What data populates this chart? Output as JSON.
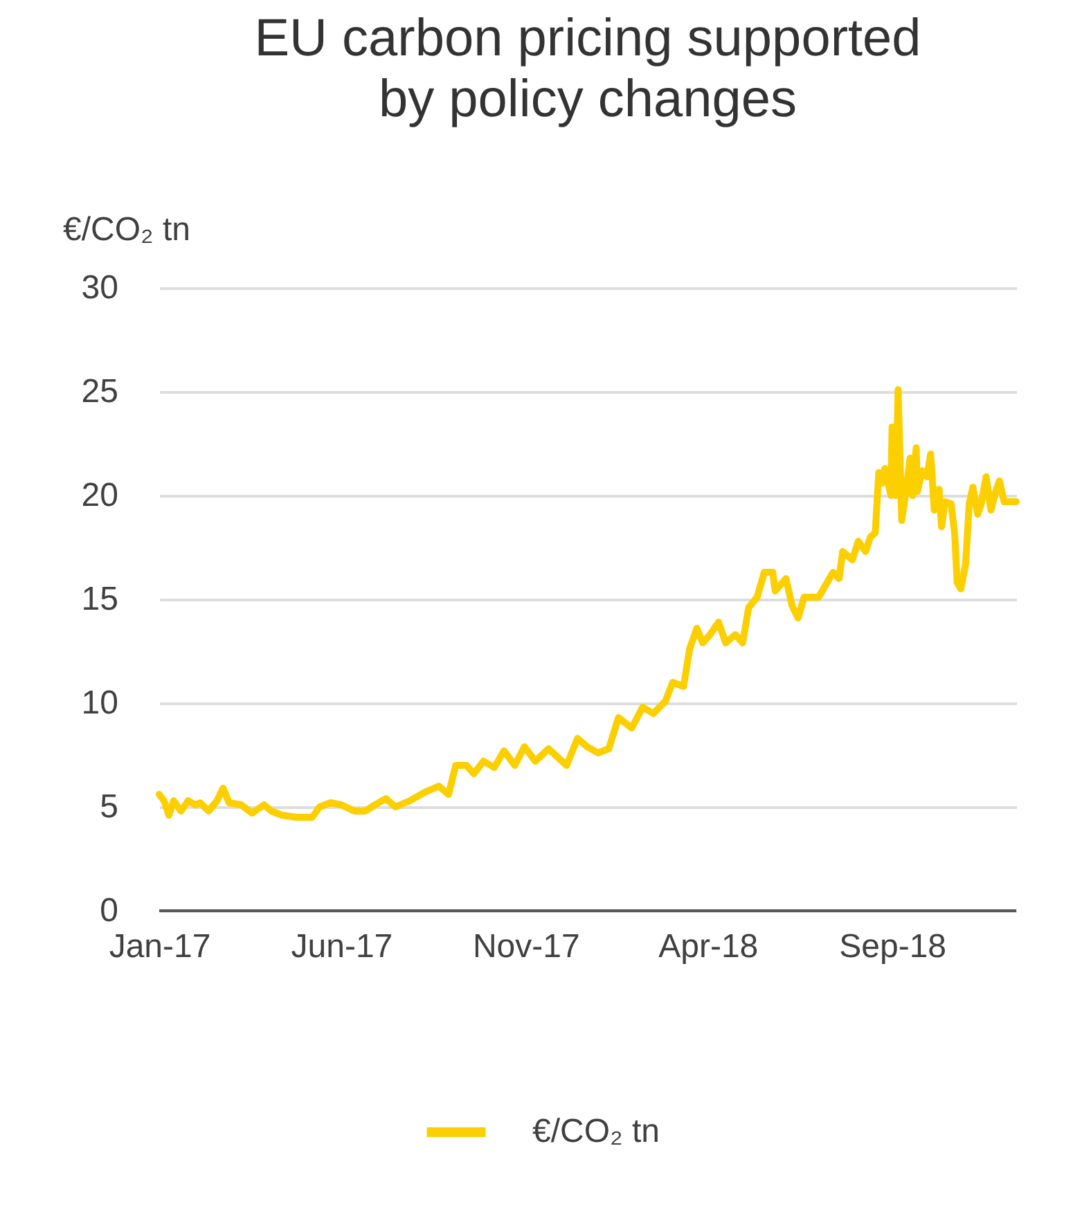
{
  "chart_data": {
    "type": "line",
    "title": "EU carbon pricing supported\nby policy changes",
    "ylabel": "€/CO₂ tn",
    "x": [
      "2017-01-01",
      "2017-01-05",
      "2017-01-09",
      "2017-01-13",
      "2017-01-19",
      "2017-01-25",
      "2017-01-31",
      "2017-02-04",
      "2017-02-11",
      "2017-02-18",
      "2017-02-23",
      "2017-02-28",
      "2017-03-10",
      "2017-03-19",
      "2017-03-29",
      "2017-04-04",
      "2017-04-13",
      "2017-04-25",
      "2017-05-08",
      "2017-05-14",
      "2017-05-23",
      "2017-06-01",
      "2017-06-12",
      "2017-06-21",
      "2017-06-29",
      "2017-07-08",
      "2017-07-16",
      "2017-07-28",
      "2017-08-09",
      "2017-08-21",
      "2017-08-29",
      "2017-09-04",
      "2017-09-13",
      "2017-09-19",
      "2017-09-27",
      "2017-10-06",
      "2017-10-14",
      "2017-10-23",
      "2017-10-31",
      "2017-11-09",
      "2017-11-20",
      "2017-12-05",
      "2017-12-14",
      "2017-12-22",
      "2017-12-31",
      "2018-01-09",
      "2018-01-17",
      "2018-01-28",
      "2018-02-06",
      "2018-02-15",
      "2018-02-25",
      "2018-03-03",
      "2018-03-12",
      "2018-03-17",
      "2018-03-23",
      "2018-03-28",
      "2018-04-03",
      "2018-04-10",
      "2018-04-16",
      "2018-04-24",
      "2018-04-30",
      "2018-05-05",
      "2018-05-12",
      "2018-05-18",
      "2018-05-25",
      "2018-05-27",
      "2018-06-05",
      "2018-06-10",
      "2018-06-15",
      "2018-06-20",
      "2018-07-02",
      "2018-07-09",
      "2018-07-14",
      "2018-07-19",
      "2018-07-22",
      "2018-07-30",
      "2018-08-04",
      "2018-08-10",
      "2018-08-14",
      "2018-08-18",
      "2018-08-21",
      "2018-08-24",
      "2018-08-26",
      "2018-08-31",
      "2018-09-01",
      "2018-09-04",
      "2018-09-06",
      "2018-09-09",
      "2018-09-12",
      "2018-09-16",
      "2018-09-18",
      "2018-09-21",
      "2018-09-22",
      "2018-09-26",
      "2018-09-30",
      "2018-10-03",
      "2018-10-06",
      "2018-10-10",
      "2018-10-12",
      "2018-10-15",
      "2018-10-20",
      "2018-10-23",
      "2018-10-25",
      "2018-10-28",
      "2018-11-01",
      "2018-11-04",
      "2018-11-07",
      "2018-11-11",
      "2018-11-14",
      "2018-11-18",
      "2018-11-22",
      "2018-11-26",
      "2018-11-29",
      "2018-12-03",
      "2018-12-13"
    ],
    "series": [
      {
        "name": "€/CO₂ tn",
        "color": "#fccf00",
        "values": [
          5.6,
          5.3,
          4.6,
          5.3,
          4.8,
          5.3,
          5.1,
          5.2,
          4.8,
          5.3,
          5.9,
          5.2,
          5.1,
          4.7,
          5.1,
          4.8,
          4.6,
          4.5,
          4.5,
          5.0,
          5.2,
          5.1,
          4.8,
          4.8,
          5.1,
          5.4,
          5.0,
          5.3,
          5.7,
          6.0,
          5.6,
          7.0,
          7.0,
          6.6,
          7.2,
          6.9,
          7.7,
          7.0,
          7.9,
          7.2,
          7.8,
          7.0,
          8.3,
          7.9,
          7.6,
          7.8,
          9.3,
          8.8,
          9.8,
          9.5,
          10.1,
          11.0,
          10.8,
          12.6,
          13.6,
          12.9,
          13.3,
          13.9,
          12.9,
          13.3,
          12.9,
          14.6,
          15.1,
          16.3,
          16.3,
          15.4,
          16.0,
          14.7,
          14.1,
          15.1,
          15.1,
          15.8,
          16.3,
          16.0,
          17.3,
          16.9,
          17.8,
          17.3,
          18.0,
          18.2,
          21.1,
          20.6,
          21.3,
          20.0,
          23.3,
          20.0,
          25.1,
          18.8,
          20.0,
          21.8,
          20.0,
          22.3,
          20.2,
          21.2,
          20.9,
          22.0,
          19.3,
          20.3,
          18.5,
          19.7,
          19.6,
          18.1,
          15.8,
          15.5,
          16.7,
          19.6,
          20.4,
          19.1,
          19.6,
          20.9,
          19.3,
          20.2,
          20.7,
          19.7,
          19.7
        ]
      }
    ],
    "xlim": [
      "2017-01-01",
      "2018-12-13"
    ],
    "xticks": [
      {
        "value": "2017-01-01",
        "label": "Jan-17"
      },
      {
        "value": "2017-06-01",
        "label": "Jun-17"
      },
      {
        "value": "2017-11-01",
        "label": "Nov-17"
      },
      {
        "value": "2018-04-01",
        "label": "Apr-18"
      },
      {
        "value": "2018-09-01",
        "label": "Sep-18"
      }
    ],
    "ylim": [
      0,
      30
    ],
    "yticks": [
      0,
      5,
      10,
      15,
      20,
      25,
      30
    ],
    "grid": "y",
    "legend": "bottom",
    "line_style": "solid"
  }
}
